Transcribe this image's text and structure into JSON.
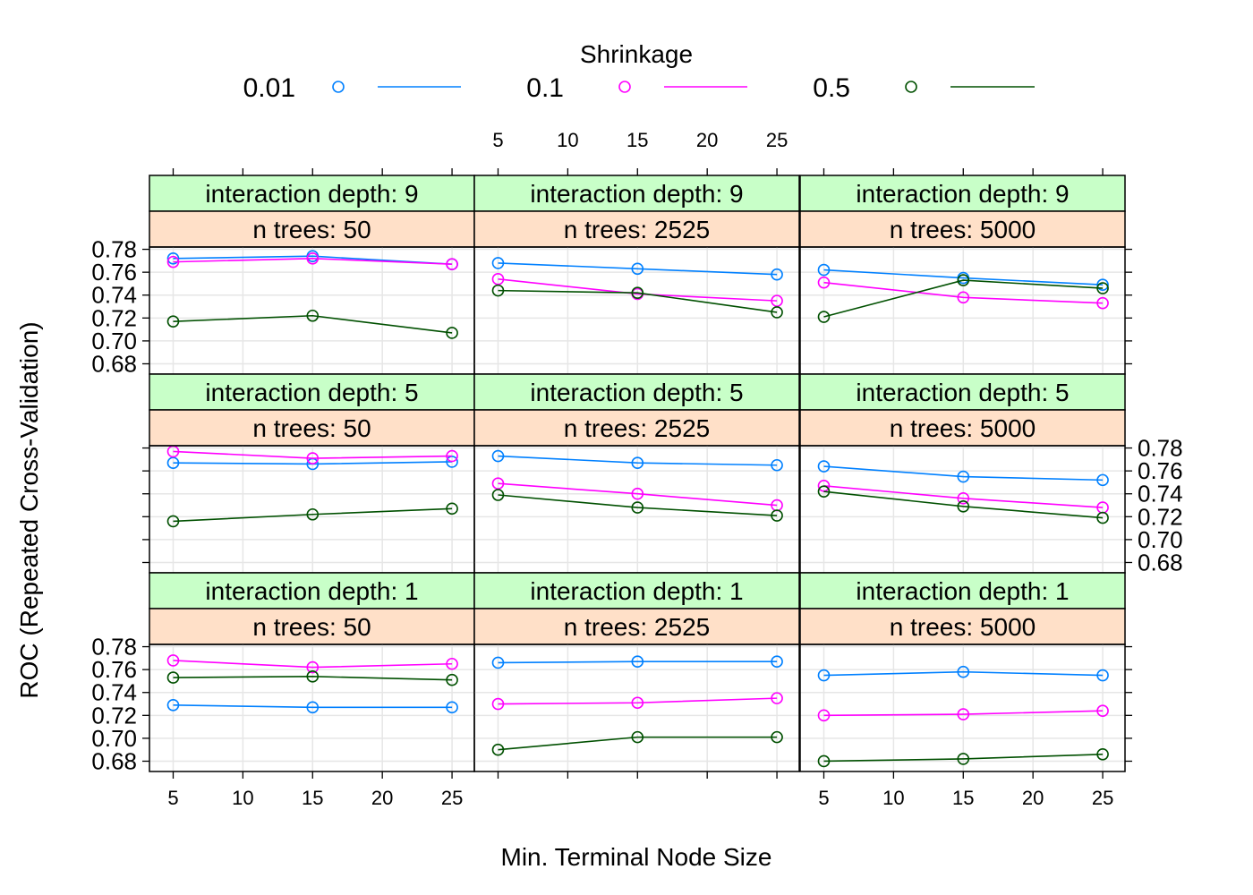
{
  "chart_data": {
    "type": "line",
    "ylabel": "ROC (Repeated Cross-Validation)",
    "xlabel": "Min. Terminal Node Size",
    "x": [
      5,
      15,
      25
    ],
    "xlim": [
      3.3,
      26.6
    ],
    "ylim": [
      0.671,
      0.782
    ],
    "x_ticks": [
      5,
      10,
      15,
      20,
      25
    ],
    "y_ticks": [
      0.68,
      0.7,
      0.72,
      0.74,
      0.76,
      0.78
    ],
    "y_tick_labels": [
      "0.68",
      "0.70",
      "0.72",
      "0.74",
      "0.76",
      "0.78"
    ],
    "x_tick_labels": [
      "5",
      "10",
      "15",
      "20",
      "25"
    ],
    "grid": true,
    "legend": {
      "title": "Shrinkage",
      "placement": "top",
      "entries": [
        {
          "label": "0.01",
          "color": "#0080ff"
        },
        {
          "label": "0.1",
          "color": "#ff00ff"
        },
        {
          "label": "0.5",
          "color": "#005000"
        }
      ]
    },
    "rows": [
      {
        "depth_label": "interaction depth: 9"
      },
      {
        "depth_label": "interaction depth: 5"
      },
      {
        "depth_label": "interaction depth: 1"
      }
    ],
    "cols": [
      {
        "trees_label": "n trees:   50"
      },
      {
        "trees_label": "n trees: 2525"
      },
      {
        "trees_label": "n trees: 5000"
      }
    ],
    "panels": [
      {
        "series": [
          [
            0.772,
            0.774,
            0.767
          ],
          [
            0.769,
            0.772,
            0.767
          ],
          [
            0.717,
            0.722,
            0.707
          ]
        ]
      },
      {
        "series": [
          [
            0.768,
            0.763,
            0.758
          ],
          [
            0.754,
            0.741,
            0.735
          ],
          [
            0.744,
            0.742,
            0.725
          ]
        ]
      },
      {
        "series": [
          [
            0.762,
            0.755,
            0.749
          ],
          [
            0.751,
            0.738,
            0.733
          ],
          [
            0.721,
            0.753,
            0.746
          ]
        ]
      },
      {
        "series": [
          [
            0.767,
            0.766,
            0.768
          ],
          [
            0.777,
            0.771,
            0.773
          ],
          [
            0.716,
            0.722,
            0.727
          ]
        ]
      },
      {
        "series": [
          [
            0.773,
            0.767,
            0.765
          ],
          [
            0.749,
            0.74,
            0.73
          ],
          [
            0.739,
            0.728,
            0.721
          ]
        ]
      },
      {
        "series": [
          [
            0.764,
            0.755,
            0.752
          ],
          [
            0.747,
            0.736,
            0.728
          ],
          [
            0.742,
            0.729,
            0.719
          ]
        ]
      },
      {
        "series": [
          [
            0.729,
            0.727,
            0.727
          ],
          [
            0.768,
            0.762,
            0.765
          ],
          [
            0.753,
            0.754,
            0.751
          ]
        ]
      },
      {
        "series": [
          [
            0.766,
            0.767,
            0.767
          ],
          [
            0.73,
            0.731,
            0.735
          ],
          [
            0.69,
            0.701,
            0.701
          ]
        ]
      },
      {
        "series": [
          [
            0.755,
            0.758,
            0.755
          ],
          [
            0.72,
            0.721,
            0.724
          ],
          [
            0.68,
            0.682,
            0.686
          ]
        ]
      }
    ]
  }
}
